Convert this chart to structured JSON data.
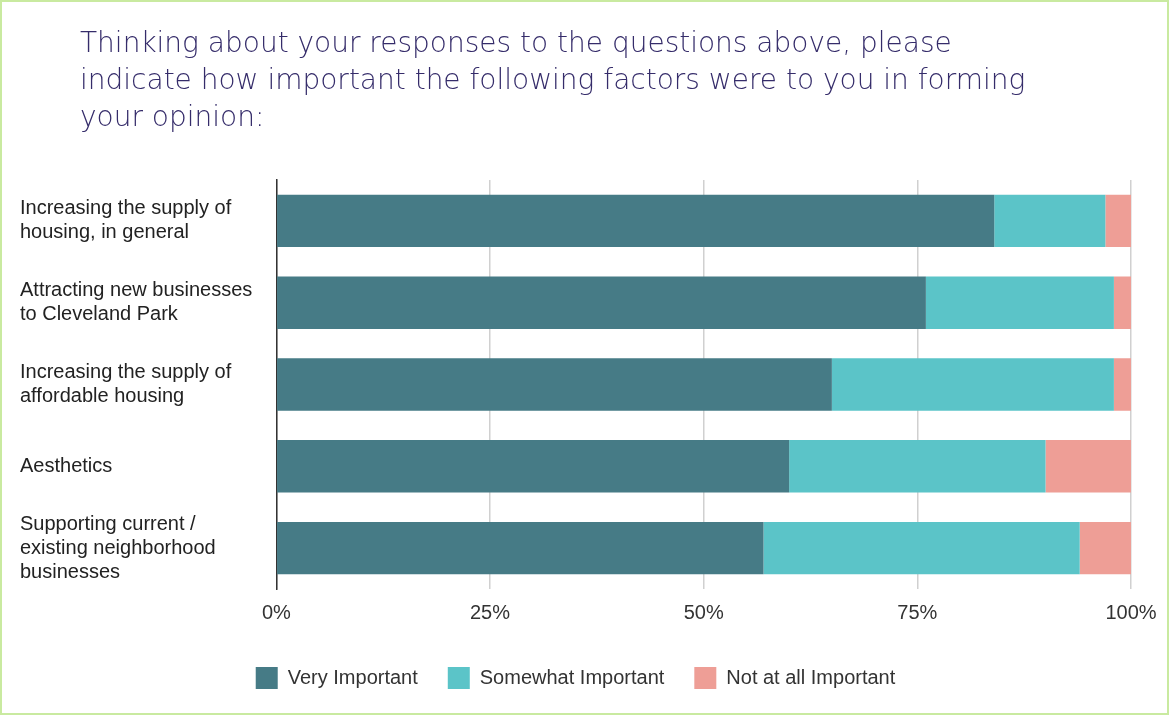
{
  "chart_data": {
    "type": "bar",
    "orientation": "horizontal",
    "stacked": true,
    "title": "Thinking about your responses to the questions above, please indicate how important the following factors were to you in forming your opinion:",
    "categories": [
      "Increasing the supply of housing, in general",
      "Attracting new businesses to Cleveland Park",
      "Increasing the supply of affordable housing",
      "Aesthetics",
      "Supporting current / existing neighborhood businesses"
    ],
    "series": [
      {
        "name": "Very Important",
        "color": "#467b86",
        "values": [
          84,
          76,
          65,
          60,
          57
        ]
      },
      {
        "name": "Somewhat Important",
        "color": "#5bc4c8",
        "values": [
          13,
          22,
          33,
          30,
          37
        ]
      },
      {
        "name": "Not at all Important",
        "color": "#ee9e96",
        "values": [
          3,
          2,
          2,
          10,
          6
        ]
      }
    ],
    "xlim": [
      0,
      100
    ],
    "xticks": [
      {
        "value": 0,
        "label": "0%"
      },
      {
        "value": 25,
        "label": "25%"
      },
      {
        "value": 50,
        "label": "50%"
      },
      {
        "value": 75,
        "label": "75%"
      },
      {
        "value": 100,
        "label": "100%"
      }
    ],
    "grid": "x",
    "legend": "bottom"
  }
}
